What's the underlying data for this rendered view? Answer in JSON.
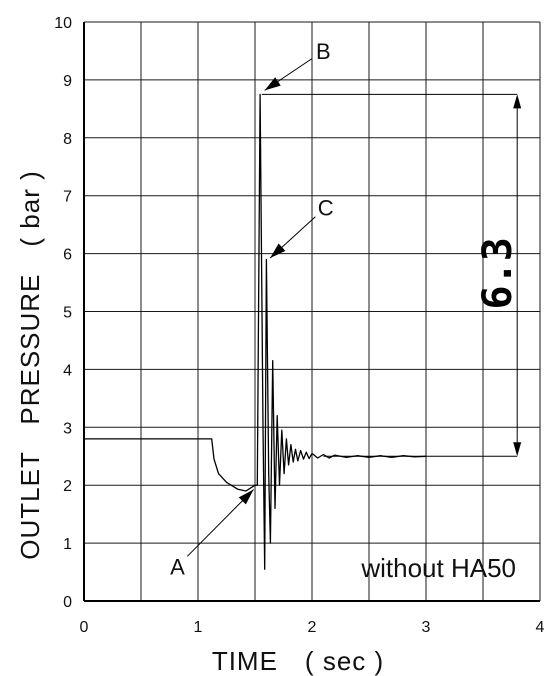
{
  "chart_data": {
    "type": "line",
    "xlabel": "TIME　( sec )",
    "ylabel": "OUTLET　PRESSURE　( bar )",
    "xlim": [
      0,
      4
    ],
    "ylim": [
      0,
      10
    ],
    "x_ticks": [
      "0",
      "1",
      "2",
      "3",
      "4"
    ],
    "y_ticks": [
      "0",
      "1",
      "2",
      "3",
      "4",
      "5",
      "6",
      "7",
      "8",
      "9",
      "10"
    ],
    "grid": true,
    "inset_text": "without  HA50",
    "series": [
      {
        "name": "",
        "points": [
          [
            0.0,
            2.8
          ],
          [
            1.12,
            2.8
          ],
          [
            1.14,
            2.45
          ],
          [
            1.18,
            2.2
          ],
          [
            1.25,
            2.05
          ],
          [
            1.35,
            1.93
          ],
          [
            1.42,
            1.9
          ],
          [
            1.5,
            2.0
          ],
          [
            1.52,
            2.0
          ],
          [
            1.545,
            8.75
          ],
          [
            1.57,
            3.0
          ],
          [
            1.585,
            0.55
          ],
          [
            1.6,
            5.9
          ],
          [
            1.62,
            2.2
          ],
          [
            1.635,
            1.0
          ],
          [
            1.655,
            4.15
          ],
          [
            1.675,
            1.6
          ],
          [
            1.695,
            3.2
          ],
          [
            1.715,
            2.0
          ],
          [
            1.735,
            2.95
          ],
          [
            1.755,
            2.2
          ],
          [
            1.775,
            2.8
          ],
          [
            1.795,
            2.35
          ],
          [
            1.815,
            2.7
          ],
          [
            1.835,
            2.4
          ],
          [
            1.855,
            2.62
          ],
          [
            1.875,
            2.42
          ],
          [
            1.9,
            2.6
          ],
          [
            1.925,
            2.45
          ],
          [
            1.95,
            2.57
          ],
          [
            1.975,
            2.46
          ],
          [
            2.0,
            2.55
          ],
          [
            2.05,
            2.47
          ],
          [
            2.1,
            2.53
          ],
          [
            2.15,
            2.47
          ],
          [
            2.2,
            2.52
          ],
          [
            2.3,
            2.48
          ],
          [
            2.4,
            2.51
          ],
          [
            2.5,
            2.48
          ],
          [
            2.6,
            2.51
          ],
          [
            2.7,
            2.48
          ],
          [
            2.8,
            2.51
          ],
          [
            2.9,
            2.49
          ],
          [
            3.0,
            2.5
          ]
        ]
      }
    ],
    "annotations": [
      {
        "label": "A",
        "text_x": 0.82,
        "text_y": 0.6,
        "arrow_to_x": 1.5,
        "arrow_to_y": 1.95
      },
      {
        "label": "B",
        "text_x": 2.1,
        "text_y": 9.5,
        "arrow_to_x": 1.57,
        "arrow_to_y": 8.8
      },
      {
        "label": "C",
        "text_x": 2.12,
        "text_y": 6.8,
        "arrow_to_x": 1.62,
        "arrow_to_y": 5.9
      }
    ],
    "dimension": {
      "label": "6.3",
      "top_value": 8.75,
      "bottom_value": 2.5,
      "line_x_start": 1.56,
      "line_x_end": 3.8,
      "arrow_x": 3.8
    }
  }
}
